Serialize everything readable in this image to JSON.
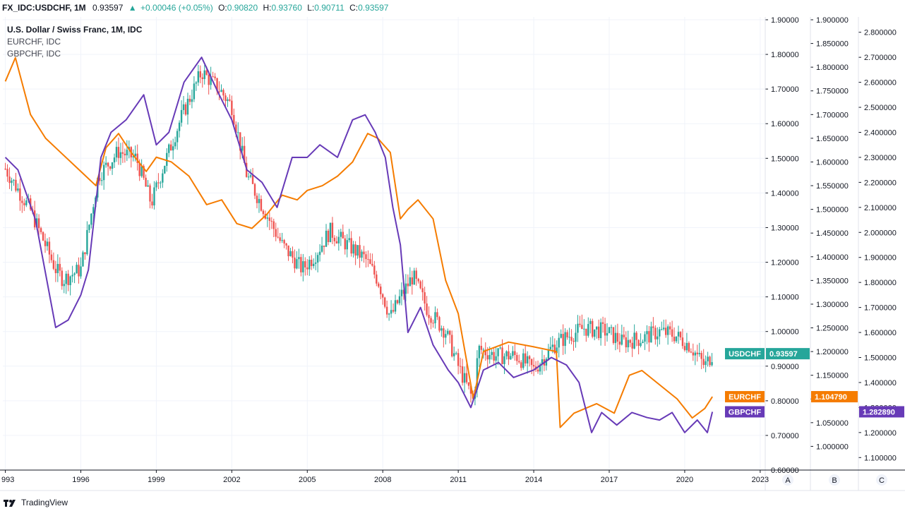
{
  "topbar": {
    "symbol": "FX_IDC:USDCHF, 1M",
    "last": "0.93597",
    "arrow": "▲",
    "change": "+0.00046 (+0.05%)",
    "o_label": "O:",
    "o_value": "0.90820",
    "h_label": "H:",
    "h_value": "0.93760",
    "l_label": "L:",
    "l_value": "0.90711",
    "c_label": "C:",
    "c_value": "0.93597"
  },
  "legend": {
    "main": "U.S. Dollar / Swiss Franc, 1M, IDC",
    "s1": "EURCHF, IDC",
    "s2": "GBPCHF, IDC"
  },
  "brand": {
    "name": "TradingView",
    "icon": "tradingview-logo-icon"
  },
  "colors": {
    "up": "#26a69a",
    "down": "#ef5350",
    "eurchf": "#f57c00",
    "gbpchf": "#673ab7",
    "usdchf_tag": "#26a69a",
    "grid": "#f0f3fa"
  },
  "chart_data": {
    "type": "candlestick+line",
    "timeframe": "1M",
    "x_ticks": [
      "993",
      "1996",
      "1999",
      "2002",
      "2005",
      "2008",
      "2011",
      "2014",
      "2017",
      "2020",
      "2023"
    ],
    "scale_labels": [
      "A",
      "B",
      "C"
    ],
    "axes": {
      "A": {
        "min": 0.6,
        "max": 1.9,
        "ticks": [
          "0.60000",
          "0.70000",
          "0.80000",
          "0.90000",
          "1.00000",
          "1.10000",
          "1.20000",
          "1.30000",
          "1.40000",
          "1.50000",
          "1.60000",
          "1.70000",
          "1.80000",
          "1.90000"
        ]
      },
      "B": {
        "min": 0.95,
        "max": 1.9,
        "ticks": [
          "1.000000",
          "1.050000",
          "1.100000",
          "1.150000",
          "1.200000",
          "1.250000",
          "1.300000",
          "1.350000",
          "1.400000",
          "1.450000",
          "1.500000",
          "1.550000",
          "1.600000",
          "1.650000",
          "1.700000",
          "1.750000",
          "1.800000",
          "1.850000",
          "1.900000"
        ]
      },
      "C": {
        "min": 1.05,
        "max": 2.85,
        "ticks": [
          "1.100000",
          "1.200000",
          "1.300000",
          "1.400000",
          "1.500000",
          "1.600000",
          "1.700000",
          "1.800000",
          "1.900000",
          "2.000000",
          "2.100000",
          "2.200000",
          "2.300000",
          "2.400000",
          "2.500000",
          "2.600000",
          "2.700000",
          "2.800000"
        ]
      }
    },
    "series": [
      {
        "name": "USDCHF",
        "axis": "A",
        "tag": "USDCHF",
        "last_label": "0.93597",
        "x": [
          1993.0,
          1994.0,
          1995.0,
          1995.3,
          1996.0,
          1996.7,
          1997.5,
          1998.2,
          1998.8,
          1999.3,
          2000.0,
          2000.8,
          2001.5,
          2002.0,
          2002.6,
          2003.3,
          2004.0,
          2004.8,
          2005.3,
          2005.9,
          2006.6,
          2007.3,
          2007.8,
          2008.3,
          2008.7,
          2009.2,
          2009.8,
          2010.5,
          2011.0,
          2011.6,
          2011.8,
          2012.5,
          2013.3,
          2014.0,
          2014.8,
          2015.2,
          2016.0,
          2016.9,
          2017.5,
          2018.3,
          2019.0,
          2019.6,
          2020.2,
          2020.8,
          2021.1
        ],
        "y": [
          1.47,
          1.35,
          1.18,
          1.15,
          1.18,
          1.45,
          1.52,
          1.5,
          1.37,
          1.48,
          1.62,
          1.75,
          1.7,
          1.65,
          1.45,
          1.35,
          1.25,
          1.18,
          1.22,
          1.29,
          1.25,
          1.21,
          1.15,
          1.04,
          1.1,
          1.16,
          1.06,
          1.0,
          0.9,
          0.8,
          0.95,
          0.93,
          0.93,
          0.89,
          0.96,
          0.98,
          1.01,
          1.0,
          0.97,
          0.98,
          1.0,
          0.99,
          0.96,
          0.9,
          0.93597
        ]
      },
      {
        "name": "EURCHF",
        "axis": "B",
        "tag": "EURCHF",
        "last_label": "1.104790",
        "x": [
          1993.0,
          1993.4,
          1994.0,
          1994.6,
          1995.2,
          1996.0,
          1996.6,
          1997.0,
          1997.5,
          1998.0,
          1998.6,
          1999.0,
          1999.6,
          2000.3,
          2001.0,
          2001.6,
          2002.2,
          2002.8,
          2003.4,
          2004.0,
          2004.6,
          2005.0,
          2005.6,
          2006.2,
          2006.8,
          2007.4,
          2007.8,
          2008.3,
          2008.7,
          2009.0,
          2009.4,
          2010.0,
          2010.5,
          2011.0,
          2011.6,
          2012.0,
          2013.0,
          2014.0,
          2014.9,
          2015.05,
          2015.6,
          2016.5,
          2017.2,
          2017.8,
          2018.3,
          2019.0,
          2019.7,
          2020.3,
          2020.8,
          2021.1
        ],
        "y": [
          1.77,
          1.82,
          1.7,
          1.65,
          1.62,
          1.58,
          1.55,
          1.63,
          1.66,
          1.62,
          1.58,
          1.61,
          1.6,
          1.57,
          1.51,
          1.52,
          1.47,
          1.46,
          1.49,
          1.53,
          1.52,
          1.54,
          1.55,
          1.57,
          1.6,
          1.66,
          1.65,
          1.62,
          1.48,
          1.5,
          1.52,
          1.48,
          1.35,
          1.28,
          1.1,
          1.2,
          1.22,
          1.21,
          1.2,
          1.04,
          1.07,
          1.09,
          1.07,
          1.15,
          1.16,
          1.13,
          1.1,
          1.06,
          1.08,
          1.10479
        ]
      },
      {
        "name": "GBPCHF",
        "axis": "C",
        "tag": "GBPCHF",
        "last_label": "1.282890",
        "x": [
          1993.0,
          1993.5,
          1994.2,
          1995.0,
          1995.5,
          1996.0,
          1996.3,
          1996.8,
          1997.2,
          1997.8,
          1998.5,
          1999.0,
          1999.5,
          2000.1,
          2000.8,
          2001.5,
          2002.0,
          2002.6,
          2003.2,
          2003.8,
          2004.4,
          2005.0,
          2005.5,
          2006.2,
          2006.8,
          2007.3,
          2007.7,
          2008.1,
          2008.4,
          2008.7,
          2009.0,
          2009.5,
          2010.0,
          2010.6,
          2011.0,
          2011.5,
          2012.0,
          2012.6,
          2013.2,
          2014.0,
          2014.7,
          2015.3,
          2015.8,
          2016.3,
          2016.7,
          2017.3,
          2017.9,
          2018.5,
          2019.0,
          2019.5,
          2020.0,
          2020.5,
          2020.9,
          2021.1
        ],
        "y": [
          2.3,
          2.25,
          2.05,
          1.62,
          1.65,
          1.75,
          1.85,
          2.3,
          2.4,
          2.45,
          2.55,
          2.35,
          2.4,
          2.6,
          2.7,
          2.55,
          2.45,
          2.25,
          2.2,
          2.1,
          2.3,
          2.3,
          2.35,
          2.3,
          2.45,
          2.47,
          2.4,
          2.3,
          2.1,
          1.95,
          1.6,
          1.7,
          1.55,
          1.45,
          1.4,
          1.3,
          1.45,
          1.48,
          1.42,
          1.45,
          1.5,
          1.47,
          1.4,
          1.2,
          1.28,
          1.23,
          1.28,
          1.26,
          1.25,
          1.28,
          1.2,
          1.25,
          1.2,
          1.28289
        ]
      }
    ]
  }
}
